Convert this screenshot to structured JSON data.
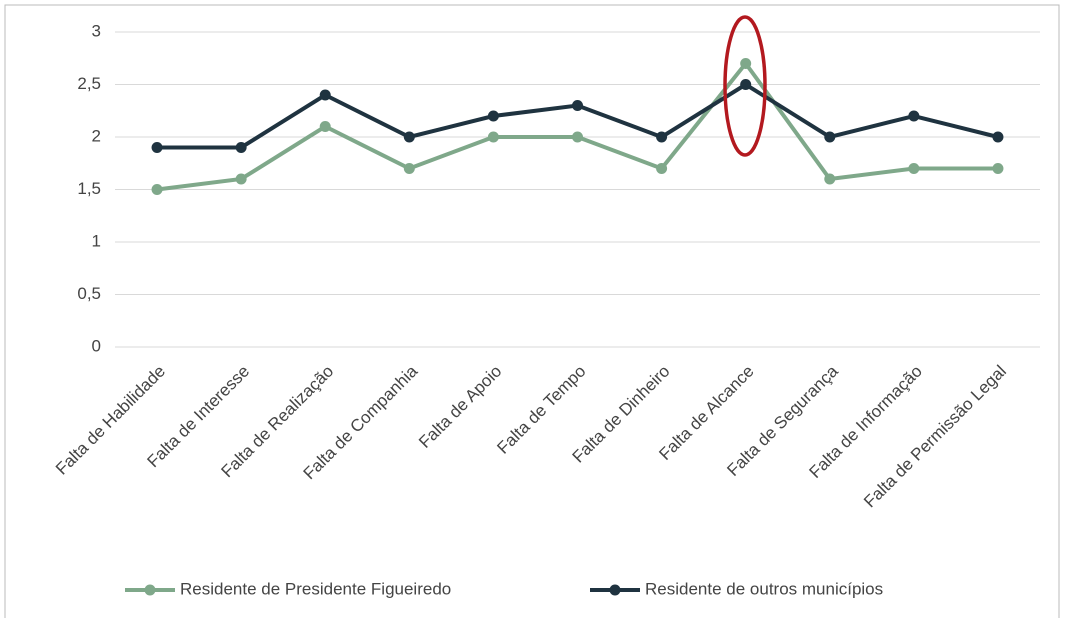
{
  "chart_data": {
    "type": "line",
    "categories": [
      "Falta de Habilidade",
      "Falta de Interesse",
      "Falta de Realização",
      "Falta de Companhia",
      "Falta de Apoio",
      "Falta de Tempo",
      "Falta de Dinheiro",
      "Falta de Alcance",
      "Falta de Segurança",
      "Falta de Informação",
      "Falta de Permissão Legal"
    ],
    "series": [
      {
        "name": "Residente de Presidente Figueiredo",
        "color": "#7fa88a",
        "values": [
          1.5,
          1.6,
          2.1,
          1.7,
          2.0,
          2.0,
          1.7,
          2.7,
          1.6,
          1.7,
          1.7
        ]
      },
      {
        "name": "Residente de outros municípios",
        "color": "#1f3340",
        "values": [
          1.9,
          1.9,
          2.4,
          2.0,
          2.2,
          2.3,
          2.0,
          2.5,
          2.0,
          2.2,
          2.0
        ]
      }
    ],
    "ylim": [
      0,
      3
    ],
    "yticks": [
      0,
      {
        "value": 0.5,
        "label": "0,5"
      },
      1,
      {
        "value": 1.5,
        "label": "1,5"
      },
      2,
      {
        "value": 2.5,
        "label": "2,5"
      },
      3
    ],
    "grid": true,
    "legend": "bottom"
  }
}
